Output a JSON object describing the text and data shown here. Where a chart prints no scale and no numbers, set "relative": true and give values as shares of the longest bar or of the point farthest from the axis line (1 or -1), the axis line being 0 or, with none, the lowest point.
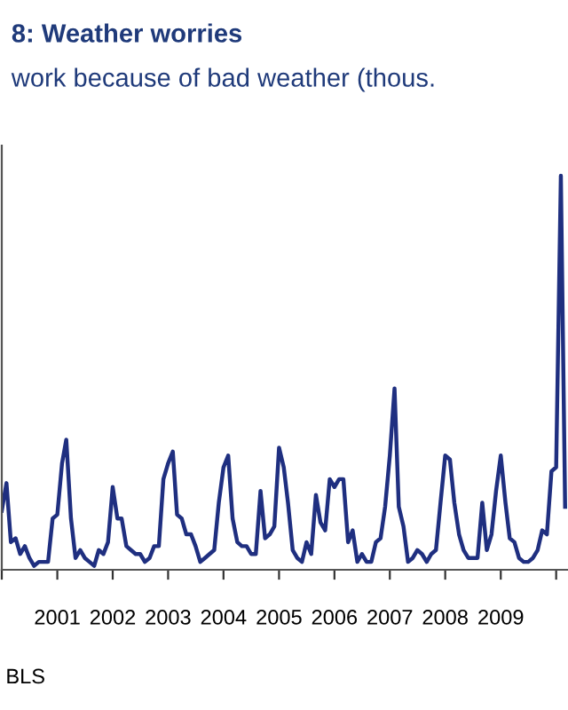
{
  "chart_data": {
    "type": "line",
    "title": "8: Weather worries",
    "subtitle": "work because of bad weather (thous.",
    "annotations": [
      "BLS"
    ],
    "relative": true,
    "x": [
      "2000-01",
      "2000-02",
      "2000-03",
      "2000-04",
      "2000-05",
      "2000-06",
      "2000-07",
      "2000-08",
      "2000-09",
      "2000-10",
      "2000-11",
      "2000-12",
      "2001-01",
      "2001-02",
      "2001-03",
      "2001-04",
      "2001-05",
      "2001-06",
      "2001-07",
      "2001-08",
      "2001-09",
      "2001-10",
      "2001-11",
      "2001-12",
      "2002-01",
      "2002-02",
      "2002-03",
      "2002-04",
      "2002-05",
      "2002-06",
      "2002-07",
      "2002-08",
      "2002-09",
      "2002-10",
      "2002-11",
      "2002-12",
      "2003-01",
      "2003-02",
      "2003-03",
      "2003-04",
      "2003-05",
      "2003-06",
      "2003-07",
      "2003-08",
      "2003-09",
      "2003-10",
      "2003-11",
      "2003-12",
      "2004-01",
      "2004-02",
      "2004-03",
      "2004-04",
      "2004-05",
      "2004-06",
      "2004-07",
      "2004-08",
      "2004-09",
      "2004-10",
      "2004-11",
      "2004-12",
      "2005-01",
      "2005-02",
      "2005-03",
      "2005-04",
      "2005-05",
      "2005-06",
      "2005-07",
      "2005-08",
      "2005-09",
      "2005-10",
      "2005-11",
      "2005-12",
      "2006-01",
      "2006-02",
      "2006-03",
      "2006-04",
      "2006-05",
      "2006-06",
      "2006-07",
      "2006-08",
      "2006-09",
      "2006-10",
      "2006-11",
      "2006-12",
      "2007-01",
      "2007-02",
      "2007-03",
      "2007-04",
      "2007-05",
      "2007-06",
      "2007-07",
      "2007-08",
      "2007-09",
      "2007-10",
      "2007-11",
      "2007-12",
      "2008-01",
      "2008-02",
      "2008-03",
      "2008-04",
      "2008-05",
      "2008-06",
      "2008-07",
      "2008-08",
      "2008-09",
      "2008-10",
      "2008-11",
      "2008-12",
      "2009-01",
      "2009-02",
      "2009-03",
      "2009-04",
      "2009-05",
      "2009-06",
      "2009-07",
      "2009-08",
      "2009-09",
      "2009-10",
      "2009-11",
      "2009-12",
      "2010-01",
      "2010-02",
      "2010-03"
    ],
    "series": [
      {
        "color": "#1f2f80",
        "values": [
          0.15,
          0.22,
          0.07,
          0.08,
          0.04,
          0.06,
          0.03,
          0.01,
          0.02,
          0.02,
          0.02,
          0.13,
          0.14,
          0.27,
          0.33,
          0.13,
          0.03,
          0.05,
          0.03,
          0.02,
          0.01,
          0.05,
          0.04,
          0.07,
          0.21,
          0.13,
          0.13,
          0.06,
          0.05,
          0.04,
          0.04,
          0.02,
          0.03,
          0.06,
          0.06,
          0.23,
          0.27,
          0.3,
          0.14,
          0.13,
          0.09,
          0.09,
          0.06,
          0.02,
          0.03,
          0.04,
          0.05,
          0.17,
          0.26,
          0.29,
          0.13,
          0.07,
          0.06,
          0.06,
          0.04,
          0.04,
          0.2,
          0.08,
          0.09,
          0.11,
          0.31,
          0.26,
          0.17,
          0.05,
          0.03,
          0.02,
          0.07,
          0.04,
          0.19,
          0.12,
          0.1,
          0.23,
          0.21,
          0.23,
          0.23,
          0.07,
          0.1,
          0.02,
          0.04,
          0.02,
          0.02,
          0.07,
          0.08,
          0.16,
          0.29,
          0.46,
          0.16,
          0.11,
          0.02,
          0.03,
          0.05,
          0.04,
          0.02,
          0.04,
          0.05,
          0.17,
          0.29,
          0.28,
          0.17,
          0.09,
          0.05,
          0.03,
          0.03,
          0.03,
          0.17,
          0.05,
          0.09,
          0.2,
          0.29,
          0.17,
          0.08,
          0.07,
          0.03,
          0.02,
          0.02,
          0.03,
          0.05,
          0.1,
          0.09,
          0.25,
          0.26,
          1.0,
          0.16
        ]
      }
    ],
    "xlim": [
      "2000-01",
      "2010-03-20"
    ],
    "xticks": [
      {
        "value": "2000-01",
        "label": null
      },
      {
        "value": "2001-01",
        "label": "2001"
      },
      {
        "value": "2002-01",
        "label": "2002"
      },
      {
        "value": "2003-01",
        "label": "2003"
      },
      {
        "value": "2004-01",
        "label": "2004"
      },
      {
        "value": "2005-01",
        "label": "2005"
      },
      {
        "value": "2006-01",
        "label": "2006"
      },
      {
        "value": "2007-01",
        "label": "2007"
      },
      {
        "value": "2008-01",
        "label": "2008"
      },
      {
        "value": "2009-01",
        "label": "2009"
      },
      {
        "value": "2010-01",
        "label": null
      }
    ],
    "tick_labels": "x",
    "grid": false,
    "legend": false,
    "marker": "none",
    "line_style": "solid"
  }
}
